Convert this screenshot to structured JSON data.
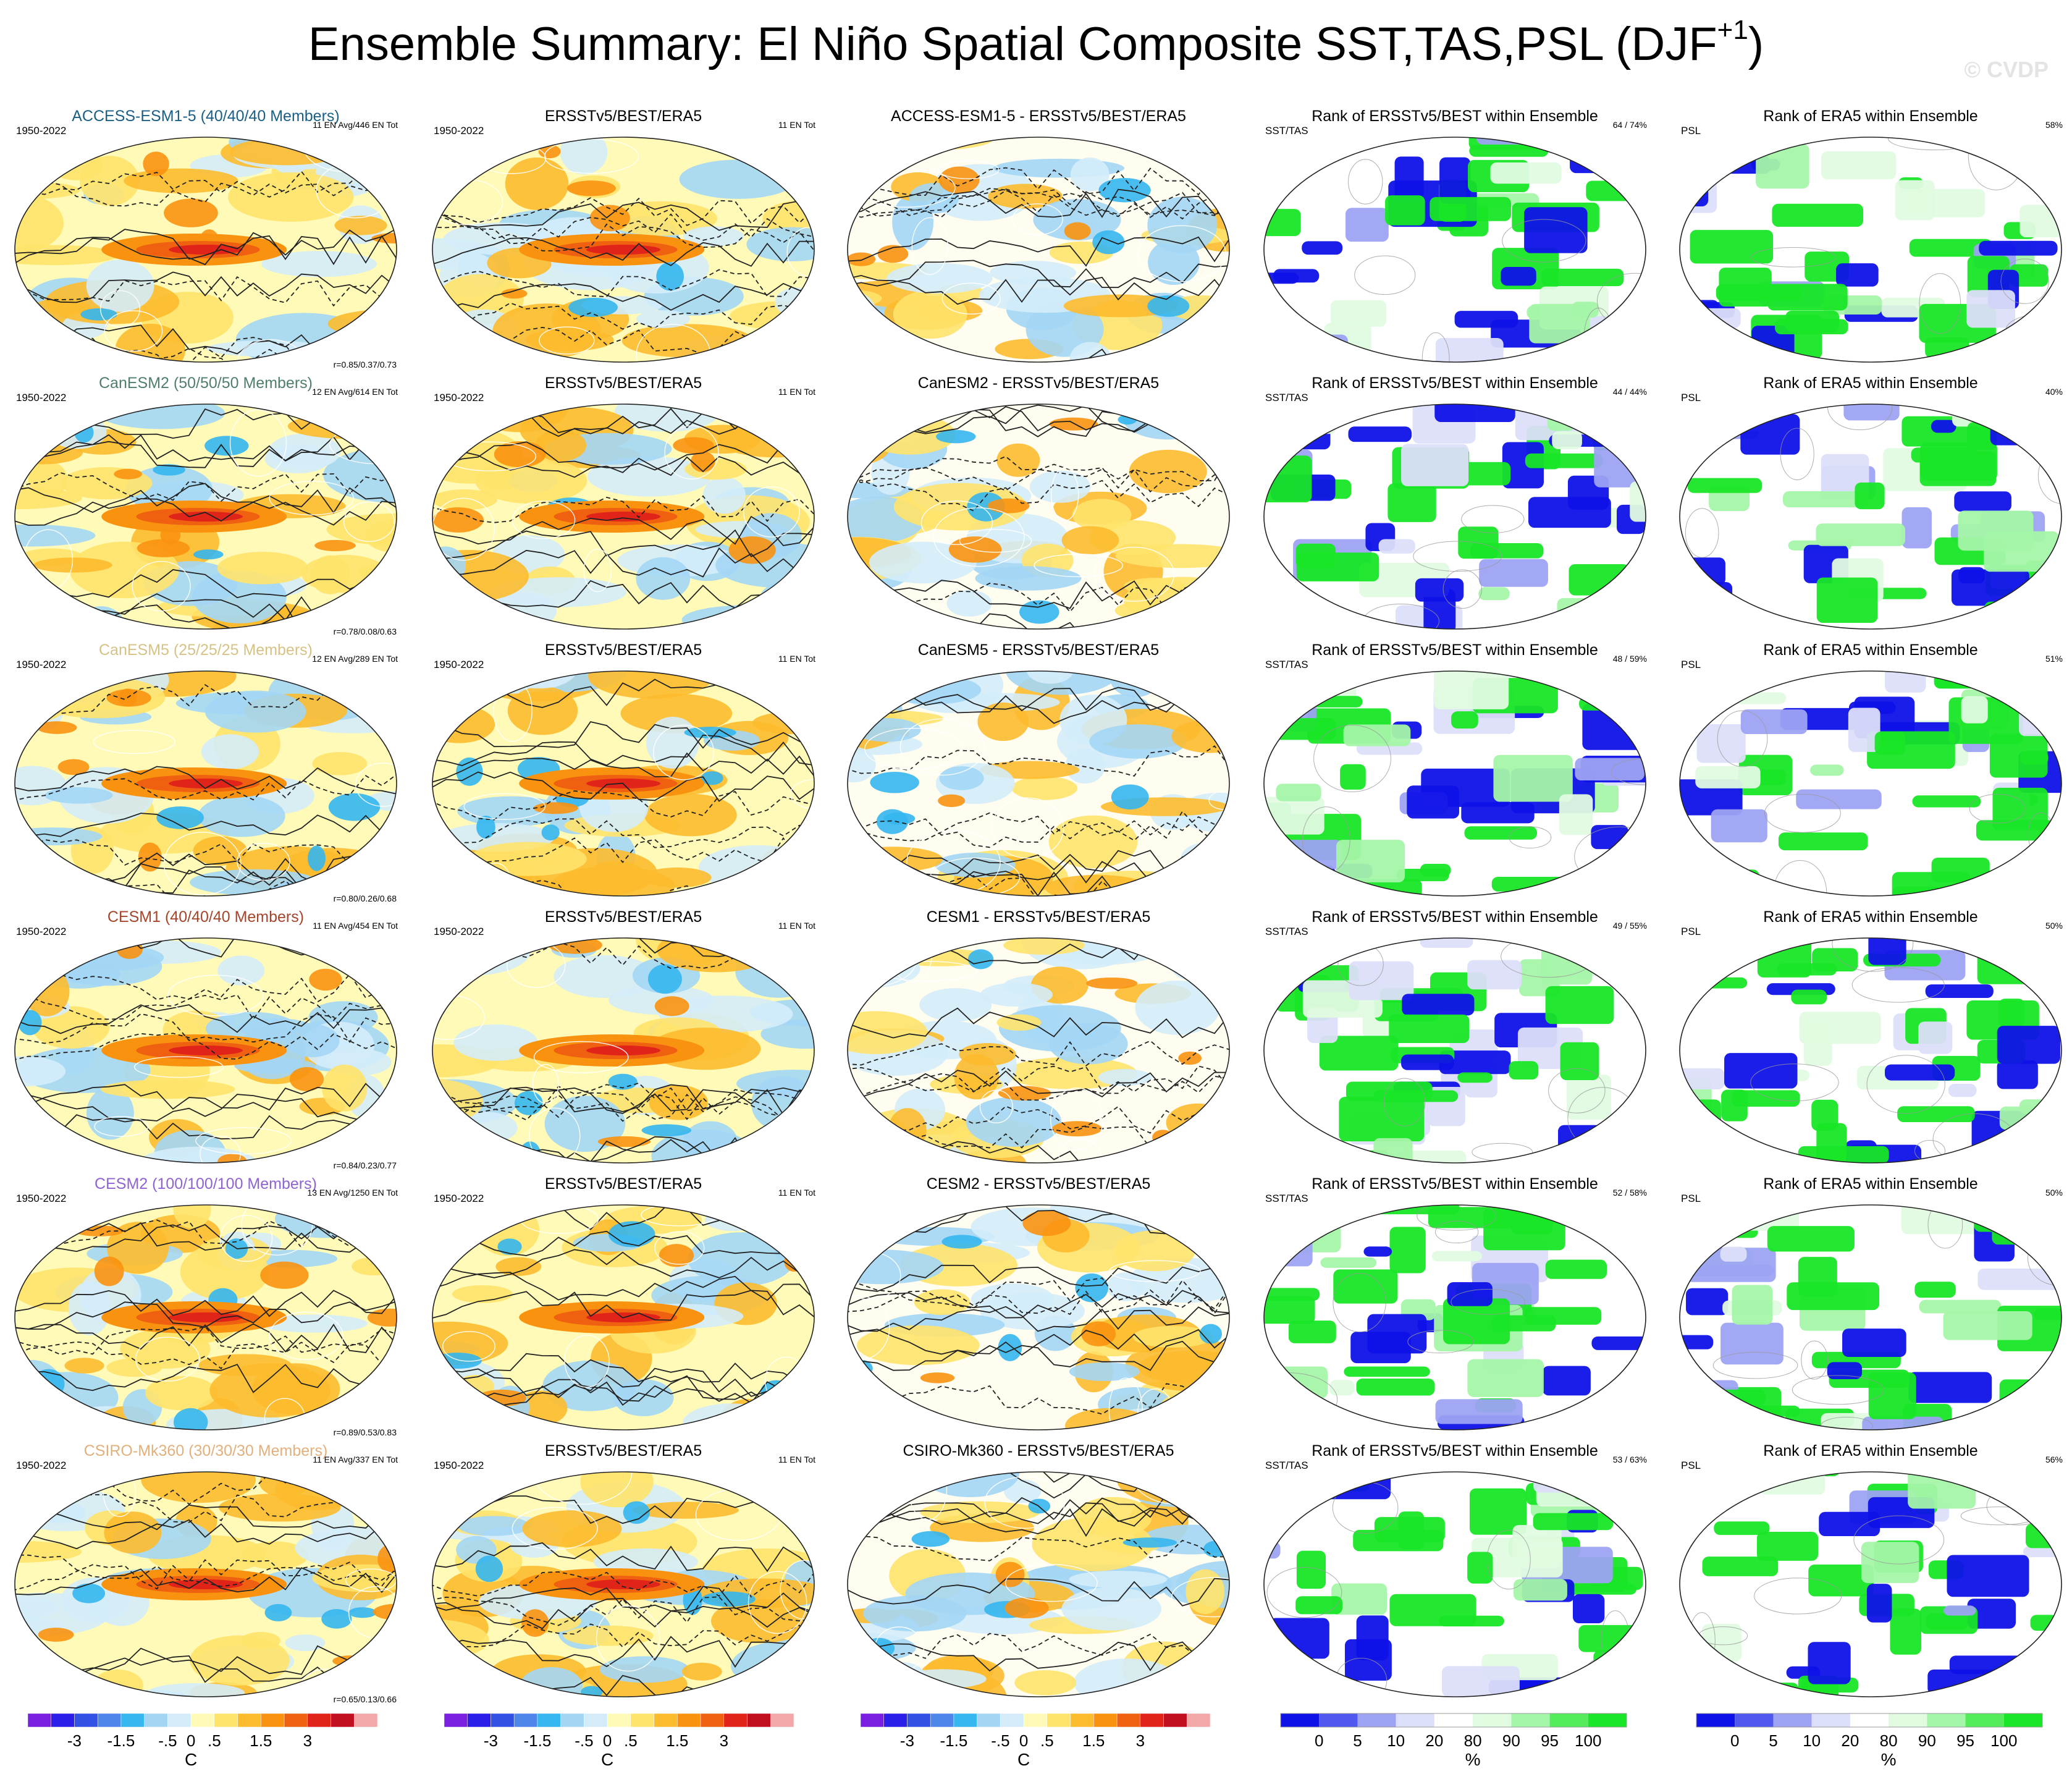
{
  "title": {
    "main": "Ensemble Summary: El Niño Spatial Composite SST,TAS,PSL (DJF",
    "sup": "+1",
    "close": ")"
  },
  "watermark": "© CVDP",
  "column_titles": {
    "obs": "ERSSTv5/BEST/ERA5",
    "rank_sst": "Rank of ERSSTv5/BEST within Ensemble",
    "rank_psl": "Rank of ERA5 within Ensemble"
  },
  "labels": {
    "period": "1950-2022",
    "obs_count": "11 EN Tot",
    "sst_tas": "SST/TAS",
    "psl": "PSL"
  },
  "colors": {
    "anomaly_scale": [
      "#7a1ee0",
      "#2b1ee8",
      "#3451e6",
      "#4f86ea",
      "#35b6ee",
      "#a3d6f5",
      "#d4ecfa",
      "#fffab8",
      "#ffe36b",
      "#fdbb2e",
      "#f9920f",
      "#ef6010",
      "#e0241a",
      "#c01020",
      "#f3a8a8"
    ],
    "rank_scale": [
      "#0f12e8",
      "#5158f0",
      "#9da3f3",
      "#dcdff9",
      "#ffffff",
      "#e0fbe0",
      "#a4f6a8",
      "#55ec5c",
      "#18e626"
    ]
  },
  "rows": [
    {
      "model": "ACCESS-ESM1-5 (40/40/40 Members)",
      "model_color": "#1a5f86",
      "model_en": "11 EN Avg/446 EN Tot",
      "corr": "r=0.85/0.37/0.73",
      "diff_title": "ACCESS-ESM1-5 - ERSSTv5/BEST/ERA5",
      "rank_sst": "64 /  74%",
      "rank_psl": "58%"
    },
    {
      "model": "CanESM2 (50/50/50 Members)",
      "model_color": "#4f7f6a",
      "model_en": "12 EN Avg/614 EN Tot",
      "corr": "r=0.78/0.08/0.63",
      "diff_title": "CanESM2 - ERSSTv5/BEST/ERA5",
      "rank_sst": "44 /  44%",
      "rank_psl": "40%"
    },
    {
      "model": "CanESM5 (25/25/25 Members)",
      "model_color": "#d6c286",
      "model_en": "12 EN Avg/289 EN Tot",
      "corr": "r=0.80/0.26/0.68",
      "diff_title": "CanESM5 - ERSSTv5/BEST/ERA5",
      "rank_sst": "48 /  59%",
      "rank_psl": "51%"
    },
    {
      "model": "CESM1 (40/40/40 Members)",
      "model_color": "#a4452c",
      "model_en": "11 EN Avg/454 EN Tot",
      "corr": "r=0.84/0.23/0.77",
      "diff_title": "CESM1 - ERSSTv5/BEST/ERA5",
      "rank_sst": "49 /  55%",
      "rank_psl": "50%"
    },
    {
      "model": "CESM2 (100/100/100 Members)",
      "model_color": "#8e63d2",
      "model_en": "13 EN Avg/1250 EN Tot",
      "corr": "r=0.89/0.53/0.83",
      "diff_title": "CESM2 - ERSSTv5/BEST/ERA5",
      "rank_sst": "52 /  58%",
      "rank_psl": "50%"
    },
    {
      "model": "CSIRO-Mk360 (30/30/30 Members)",
      "model_color": "#e2b07c",
      "model_en": "11 EN Avg/337 EN Tot",
      "corr": "r=0.65/0.13/0.66",
      "diff_title": "CSIRO-Mk360 - ERSSTv5/BEST/ERA5",
      "rank_sst": "53 /  63%",
      "rank_psl": "56%"
    }
  ],
  "colorbars": {
    "anomaly": {
      "labels": [
        "-3",
        "-1.5",
        "-.5",
        "0",
        ".5",
        "1.5",
        "3"
      ],
      "unit": "C"
    },
    "rank": {
      "labels": [
        "0",
        "5",
        "10",
        "20",
        "80",
        "90",
        "95",
        "100"
      ],
      "unit": "%"
    }
  }
}
